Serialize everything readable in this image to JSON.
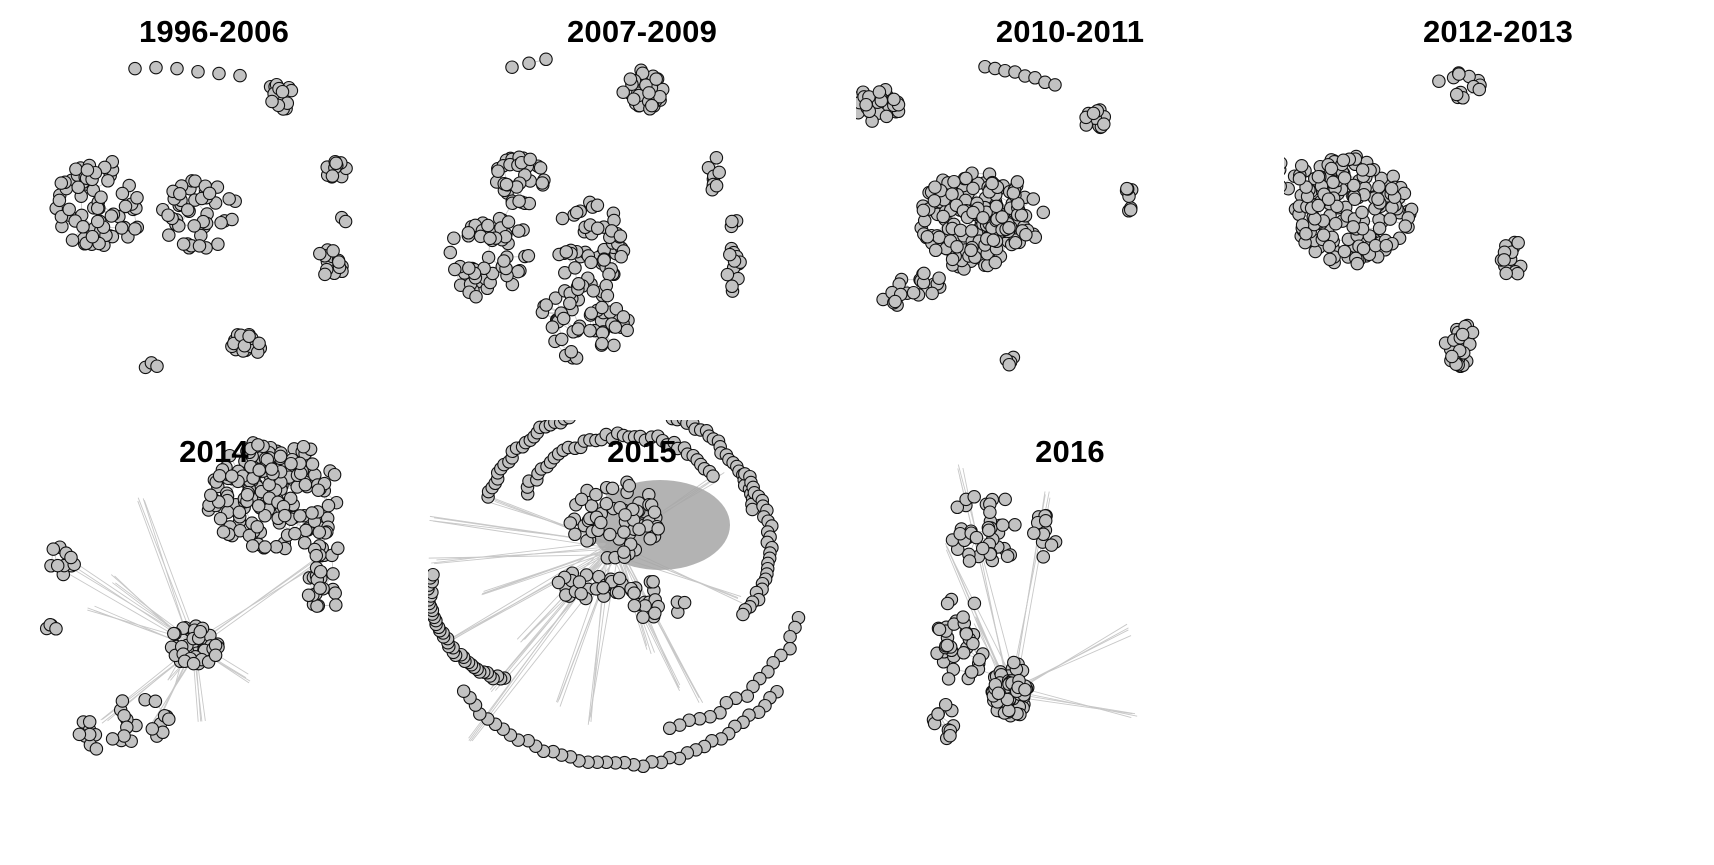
{
  "figure": {
    "panels": [
      {
        "title": "1996-2006"
      },
      {
        "title": "2007-2009"
      },
      {
        "title": "2010-2011"
      },
      {
        "title": "2012-2013"
      },
      {
        "title": "2014"
      },
      {
        "title": "2015"
      },
      {
        "title": "2016"
      }
    ]
  },
  "style": {
    "node_fill": "#c2c2c2",
    "node_stroke": "#111111",
    "edge_color": "#c8c8c8",
    "dense_fill": "#a6a6a6",
    "title_color": "#000000"
  }
}
